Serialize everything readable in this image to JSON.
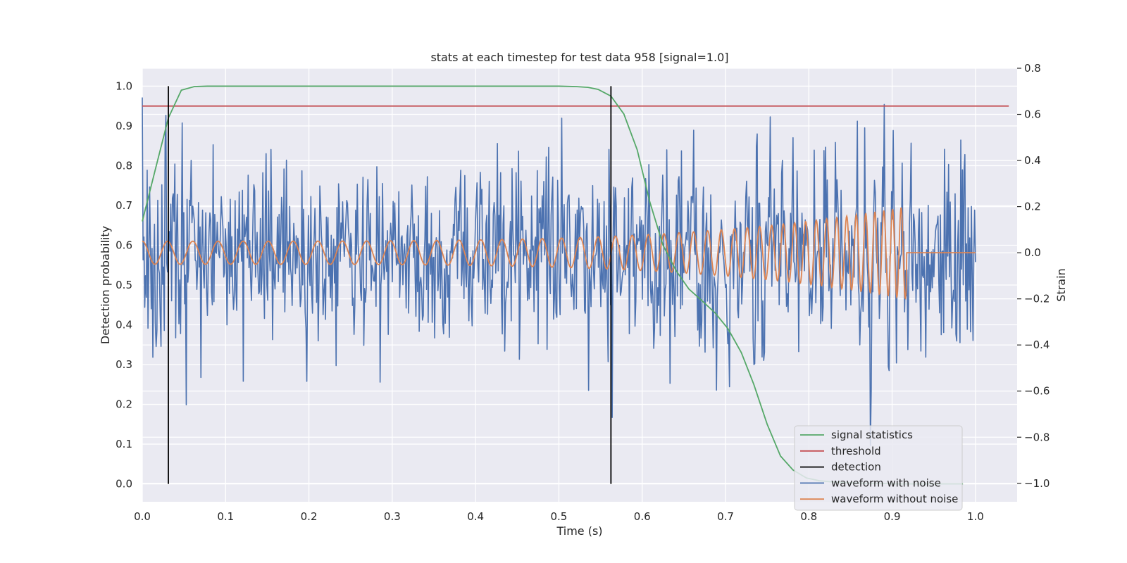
{
  "chart_data": {
    "type": "line",
    "title": "stats at each timestep for test data 958 [signal=1.0]",
    "xlabel": "Time (s)",
    "ylabel": "Detection probability",
    "y2label": "Strain",
    "xlim": [
      0.0,
      1.05
    ],
    "ylim": [
      -0.045,
      1.045
    ],
    "y2lim": [
      -1.08,
      0.8
    ],
    "xticks": [
      0.0,
      0.1,
      0.2,
      0.3,
      0.4,
      0.5,
      0.6,
      0.7,
      0.8,
      0.9,
      1.0
    ],
    "yticks": [
      0.0,
      0.1,
      0.2,
      0.3,
      0.4,
      0.5,
      0.6,
      0.7,
      0.8,
      0.9,
      1.0
    ],
    "y2ticks": [
      -1.0,
      -0.8,
      -0.6,
      -0.4,
      -0.2,
      0.0,
      0.2,
      0.4,
      0.6,
      0.8
    ],
    "grid": true,
    "legend_position": "lower right",
    "colors": {
      "background": "#eaeaf2",
      "grid": "#ffffff",
      "signal_statistics": "#55a868",
      "threshold": "#c44e52",
      "detection": "#000000",
      "waveform_noise": "#4c72b0",
      "waveform_clean": "#dd8452"
    },
    "legend": [
      "signal statistics",
      "threshold",
      "detection",
      "waveform with noise",
      "waveform without noise"
    ],
    "series": [
      {
        "name": "signal statistics",
        "axis": "left",
        "x": [
          0.0,
          0.0156,
          0.0313,
          0.0469,
          0.0625,
          0.078,
          0.1,
          0.2,
          0.3,
          0.4,
          0.5,
          0.52,
          0.535,
          0.547,
          0.5625,
          0.578,
          0.594,
          0.609,
          0.625,
          0.641,
          0.656,
          0.672,
          0.6875,
          0.703,
          0.719,
          0.734,
          0.75,
          0.766,
          0.781,
          0.797,
          0.8125,
          0.828,
          0.844,
          0.86,
          0.875,
          0.89,
          0.906,
          0.92,
          0.94,
          0.96,
          0.985
        ],
        "y": [
          0.66,
          0.79,
          0.92,
          0.99,
          0.999,
          1.0,
          1.0,
          1.0,
          1.0,
          1.0,
          1.0,
          0.999,
          0.997,
          0.992,
          0.975,
          0.93,
          0.84,
          0.71,
          0.6,
          0.535,
          0.49,
          0.46,
          0.43,
          0.39,
          0.33,
          0.25,
          0.15,
          0.07,
          0.035,
          0.015,
          0.008,
          0.005,
          0.003,
          0.002,
          0.001,
          0.001,
          0.0,
          0.0,
          0.0,
          0.0,
          0.0
        ]
      },
      {
        "name": "threshold",
        "axis": "left",
        "x": [
          0.0,
          1.04
        ],
        "y": [
          0.95,
          0.95
        ]
      },
      {
        "name": "detection",
        "axis": "left",
        "x_positions": [
          0.0313,
          0.5625
        ],
        "y_range": [
          0.0,
          1.0
        ]
      },
      {
        "name": "waveform with noise",
        "axis": "right",
        "x_range": [
          0.0,
          1.0
        ],
        "n_points": 1024,
        "amplitude_std": 0.2,
        "y_range": [
          -1.0,
          0.73
        ]
      },
      {
        "name": "waveform without noise",
        "axis": "right",
        "x_range": [
          0.0,
          1.0
        ],
        "chirp_start_freq_hz": 33,
        "chirp_end_freq_hz": 100,
        "coalescence_time": 0.917,
        "amplitude_start": 0.05,
        "amplitude_peak": 0.2,
        "final_value": 0.0
      }
    ]
  }
}
